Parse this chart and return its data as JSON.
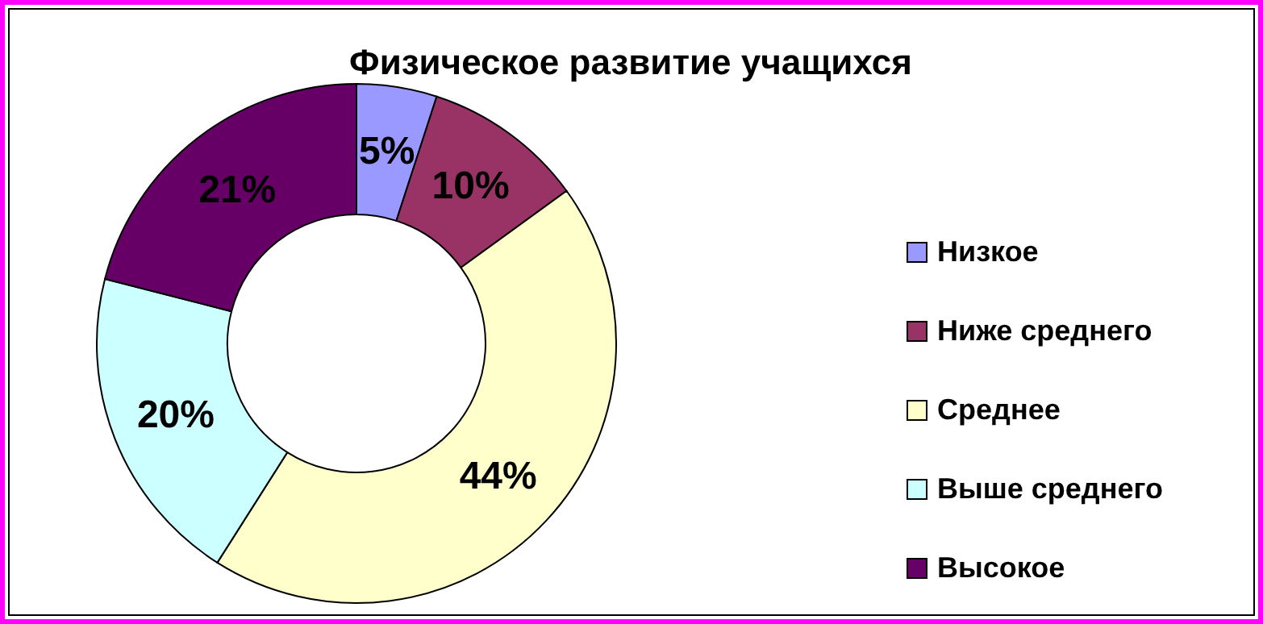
{
  "chart_data": {
    "type": "donut",
    "title": "Физическое развитие учащихся",
    "categories": [
      "Низкое",
      "Ниже среднего",
      "Среднее",
      "Выше среднего",
      "Высокое"
    ],
    "values": [
      5,
      10,
      44,
      20,
      21
    ],
    "value_labels": [
      "5%",
      "10%",
      "44%",
      "20%",
      "21%"
    ],
    "colors": [
      "#9999ff",
      "#993366",
      "#ffffcc",
      "#ccffff",
      "#660066"
    ],
    "legend": "right"
  }
}
